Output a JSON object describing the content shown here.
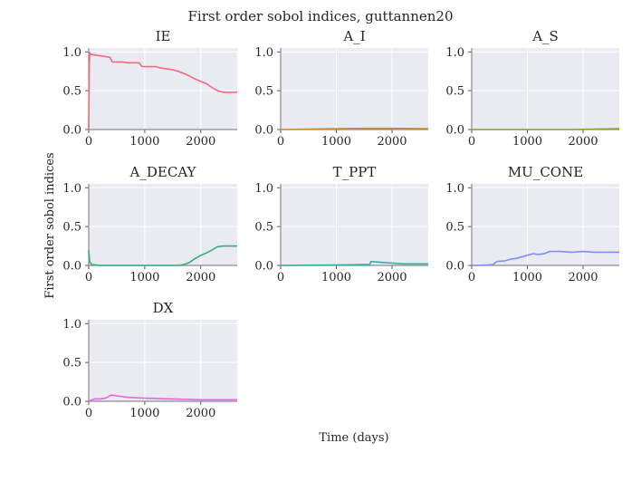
{
  "chart_data": {
    "type": "line",
    "title": "First order sobol indices, guttannen20",
    "xlabel": "Time (days)",
    "ylabel": "First order sobol indices",
    "xlim": [
      0,
      2650
    ],
    "ylim": [
      0,
      1.05
    ],
    "xticks": [
      0,
      1000,
      2000
    ],
    "yticks": [
      0.0,
      0.5,
      1.0
    ],
    "xtick_labels": [
      "0",
      "1000",
      "2000"
    ],
    "ytick_labels": [
      "0.0",
      "0.5",
      "1.0"
    ],
    "grid": true,
    "panel_background": "#eaeaf2",
    "panels": [
      {
        "title": "IE",
        "color": "#f7697b",
        "x": [
          0,
          10,
          20,
          40,
          100,
          200,
          300,
          380,
          420,
          600,
          700,
          900,
          950,
          1100,
          1200,
          1300,
          1400,
          1500,
          1600,
          1700,
          1800,
          1900,
          2000,
          2100,
          2200,
          2300,
          2400,
          2650
        ],
        "y": [
          0.0,
          0.8,
          0.99,
          0.97,
          0.96,
          0.95,
          0.94,
          0.93,
          0.87,
          0.87,
          0.86,
          0.86,
          0.81,
          0.81,
          0.81,
          0.79,
          0.78,
          0.77,
          0.75,
          0.72,
          0.69,
          0.65,
          0.62,
          0.59,
          0.54,
          0.5,
          0.48,
          0.48
        ]
      },
      {
        "title": "A_I",
        "color": "#c88c32",
        "x": [
          0,
          500,
          1000,
          1500,
          2000,
          2650
        ],
        "y": [
          0.0,
          0.005,
          0.01,
          0.015,
          0.015,
          0.01
        ]
      },
      {
        "title": "A_S",
        "color": "#82a832",
        "x": [
          0,
          1000,
          1800,
          2200,
          2650
        ],
        "y": [
          0.0,
          0.0,
          0.0,
          0.005,
          0.01
        ]
      },
      {
        "title": "A_DECAY",
        "color": "#33b07a",
        "x": [
          0,
          20,
          60,
          200,
          1000,
          1600,
          1700,
          1800,
          1900,
          2000,
          2100,
          2200,
          2300,
          2400,
          2650
        ],
        "y": [
          0.2,
          0.04,
          0.01,
          0.0,
          0.0,
          0.0,
          0.01,
          0.04,
          0.09,
          0.13,
          0.16,
          0.2,
          0.24,
          0.25,
          0.25
        ]
      },
      {
        "title": "T_PPT",
        "color": "#36ada4",
        "x": [
          0,
          1000,
          1500,
          1600,
          1620,
          1800,
          2000,
          2200,
          2650
        ],
        "y": [
          0.0,
          0.005,
          0.01,
          0.01,
          0.05,
          0.04,
          0.03,
          0.02,
          0.02
        ]
      },
      {
        "title": "MU_CONE",
        "color": "#7f8ff3",
        "x": [
          0,
          150,
          380,
          450,
          600,
          700,
          800,
          950,
          1100,
          1200,
          1300,
          1400,
          1600,
          1800,
          2000,
          2200,
          2650
        ],
        "y": [
          0.0,
          0.0,
          0.01,
          0.05,
          0.06,
          0.08,
          0.09,
          0.12,
          0.15,
          0.14,
          0.15,
          0.18,
          0.18,
          0.17,
          0.18,
          0.17,
          0.17
        ]
      },
      {
        "title": "DX",
        "color": "#e866de",
        "x": [
          0,
          100,
          200,
          300,
          400,
          500,
          700,
          1000,
          1500,
          2000,
          2400,
          2650
        ],
        "y": [
          0.0,
          0.03,
          0.03,
          0.04,
          0.08,
          0.07,
          0.05,
          0.04,
          0.03,
          0.02,
          0.02,
          0.02
        ]
      }
    ]
  }
}
